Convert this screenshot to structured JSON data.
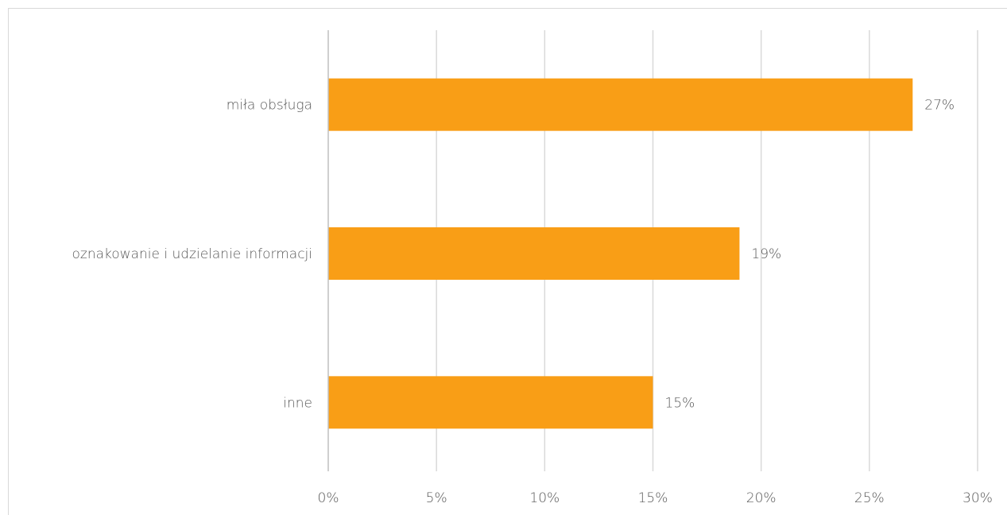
{
  "chart_data": {
    "type": "bar",
    "orientation": "horizontal",
    "categories": [
      "miła obsługa",
      "oznakowanie i udzielanie informacji",
      "inne"
    ],
    "values": [
      27,
      19,
      15
    ],
    "data_labels": [
      "27%",
      "19%",
      "15%"
    ],
    "xlim": [
      0,
      30
    ],
    "x_ticks": [
      0,
      5,
      10,
      15,
      20,
      25,
      30
    ],
    "x_tick_labels": [
      "0%",
      "5%",
      "10%",
      "15%",
      "20%",
      "25%",
      "30%"
    ],
    "grid": true,
    "legend": "none",
    "bar_color": "#f99e16"
  }
}
